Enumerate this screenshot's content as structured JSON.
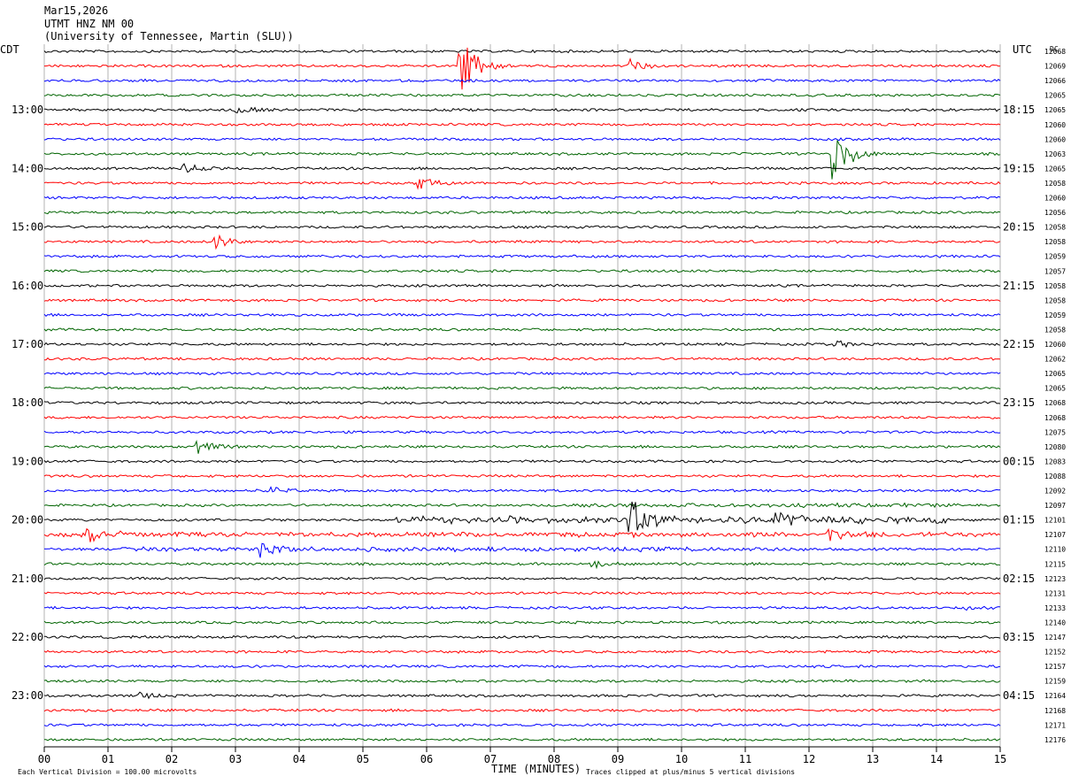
{
  "header": {
    "date": "Mar15,2026",
    "station": "UTMT HNZ NM 00",
    "network": "(University of Tennessee, Martin (SLU))"
  },
  "labels": {
    "left_timezone": "CDT",
    "right_timezone": "UTC",
    "dc_label": "DC"
  },
  "footer": {
    "scale_note": "Each Vertical Division =  100.00 microvolts",
    "xlabel": "TIME (MINUTES)",
    "clip_note": "Traces clipped at plus/minus 5 vertical divisions"
  },
  "colors": {
    "trace_cycle": [
      "#000000",
      "#ff0000",
      "#0000ff",
      "#006400"
    ],
    "grid": "#808080"
  },
  "chart_data": {
    "type": "line",
    "subtype": "helicorder",
    "xlabel": "TIME (MINUTES)",
    "xlim": [
      0,
      15
    ],
    "x_ticks": [
      "00",
      "01",
      "02",
      "03",
      "04",
      "05",
      "06",
      "07",
      "08",
      "09",
      "10",
      "11",
      "12",
      "13",
      "14",
      "15"
    ],
    "trace_minutes": 15,
    "left_hour_labels": [
      "13:00",
      "14:00",
      "15:00",
      "16:00",
      "17:00",
      "18:00",
      "19:00",
      "20:00",
      "21:00",
      "22:00",
      "23:00"
    ],
    "right_hour_labels": [
      "18:15",
      "19:15",
      "20:15",
      "21:15",
      "22:15",
      "23:15",
      "00:15",
      "01:15",
      "02:15",
      "03:15",
      "04:15"
    ],
    "dc_offsets": [
      "12068",
      "12069",
      "12066",
      "12065",
      "12065",
      "12060",
      "12060",
      "12063",
      "12065",
      "12058",
      "12060",
      "12056",
      "12058",
      "12058",
      "12059",
      "12057",
      "12058",
      "12058",
      "12059",
      "12058",
      "12060",
      "12062",
      "12065",
      "12065",
      "12068",
      "12068",
      "12075",
      "12080",
      "12083",
      "12088",
      "12092",
      "12097",
      "12101",
      "12107",
      "12110",
      "12115",
      "12123",
      "12131",
      "12133",
      "12140",
      "12147",
      "12152",
      "12157",
      "12159",
      "12164",
      "12168",
      "12171",
      "12176"
    ],
    "events": [
      {
        "trace": 1,
        "minute": 6.55,
        "amplitude": 5
      },
      {
        "trace": 1,
        "minute": 9.2,
        "amplitude": 1.2
      },
      {
        "trace": 4,
        "minute": 3.0,
        "amplitude": 1
      },
      {
        "trace": 7,
        "minute": 12.4,
        "amplitude": 5
      },
      {
        "trace": 8,
        "minute": 2.2,
        "amplitude": 0.9
      },
      {
        "trace": 9,
        "minute": 5.9,
        "amplitude": 1
      },
      {
        "trace": 13,
        "minute": 2.7,
        "amplitude": 1.3
      },
      {
        "trace": 20,
        "minute": 12.4,
        "amplitude": 0.6
      },
      {
        "trace": 27,
        "minute": 2.4,
        "amplitude": 1.3
      },
      {
        "trace": 30,
        "minute": 3.6,
        "amplitude": 0.6
      },
      {
        "trace": 32,
        "minute": 9.2,
        "amplitude": 4
      },
      {
        "trace": 32,
        "minute": 11.5,
        "amplitude": 1.6
      },
      {
        "trace": 33,
        "minute": 0.7,
        "amplitude": 1.5
      },
      {
        "trace": 33,
        "minute": 12.3,
        "amplitude": 1.5
      },
      {
        "trace": 34,
        "minute": 3.4,
        "amplitude": 1.5
      },
      {
        "trace": 35,
        "minute": 8.6,
        "amplitude": 0.8
      },
      {
        "trace": 38,
        "minute": 14.4,
        "amplitude": 0.5
      },
      {
        "trace": 44,
        "minute": 1.5,
        "amplitude": 0.5
      }
    ],
    "noisy_segments": [
      {
        "trace": 32,
        "from_minute": 5.5,
        "to_minute": 14.2,
        "level": 1.2
      },
      {
        "trace": 33,
        "from_minute": 0.0,
        "to_minute": 15.0,
        "level": 0.6
      },
      {
        "trace": 34,
        "from_minute": 1.2,
        "to_minute": 12.0,
        "level": 0.5
      },
      {
        "trace": 31,
        "from_minute": 8.2,
        "to_minute": 14.5,
        "level": 0.4
      }
    ]
  }
}
